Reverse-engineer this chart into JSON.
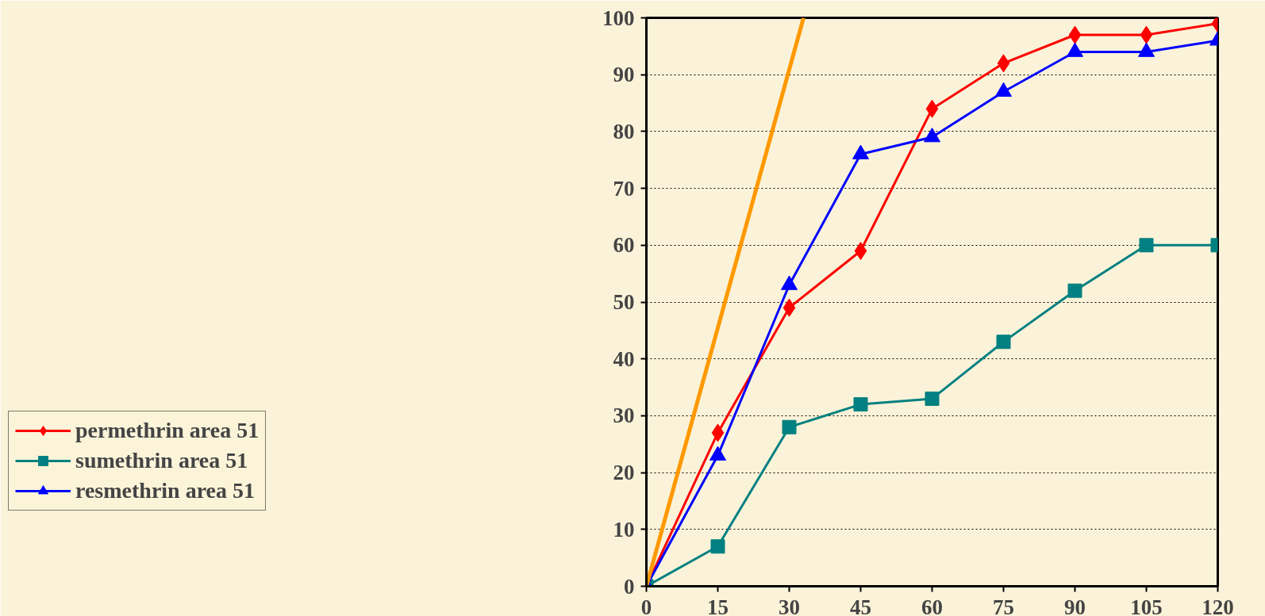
{
  "chart_data": {
    "type": "line",
    "x": [
      0,
      15,
      30,
      45,
      60,
      75,
      90,
      105,
      120
    ],
    "series": [
      {
        "name": "permethrin area 51",
        "color": "#ff0000",
        "marker": "diamond",
        "values": [
          0,
          27,
          49,
          59,
          84,
          92,
          97,
          97,
          99
        ]
      },
      {
        "name": "sumethrin area 51",
        "color": "#008080",
        "marker": "square",
        "values": [
          0,
          7,
          28,
          32,
          33,
          43,
          52,
          60,
          60
        ]
      },
      {
        "name": "resmethrin area 51",
        "color": "#0000ff",
        "marker": "triangle",
        "values": [
          0,
          23,
          53,
          76,
          79,
          87,
          94,
          94,
          96
        ]
      },
      {
        "color": "#ff9900",
        "marker": "none",
        "x": [
          0,
          33
        ],
        "values": [
          0,
          100
        ]
      }
    ],
    "xlim": [
      0,
      120
    ],
    "xticks": [
      0,
      15,
      30,
      45,
      60,
      75,
      90,
      105,
      120
    ],
    "ylim": [
      0,
      100
    ],
    "yticks": [
      0,
      10,
      20,
      30,
      40,
      50,
      60,
      70,
      80,
      90,
      100
    ],
    "grid": "y",
    "legend": "left"
  }
}
